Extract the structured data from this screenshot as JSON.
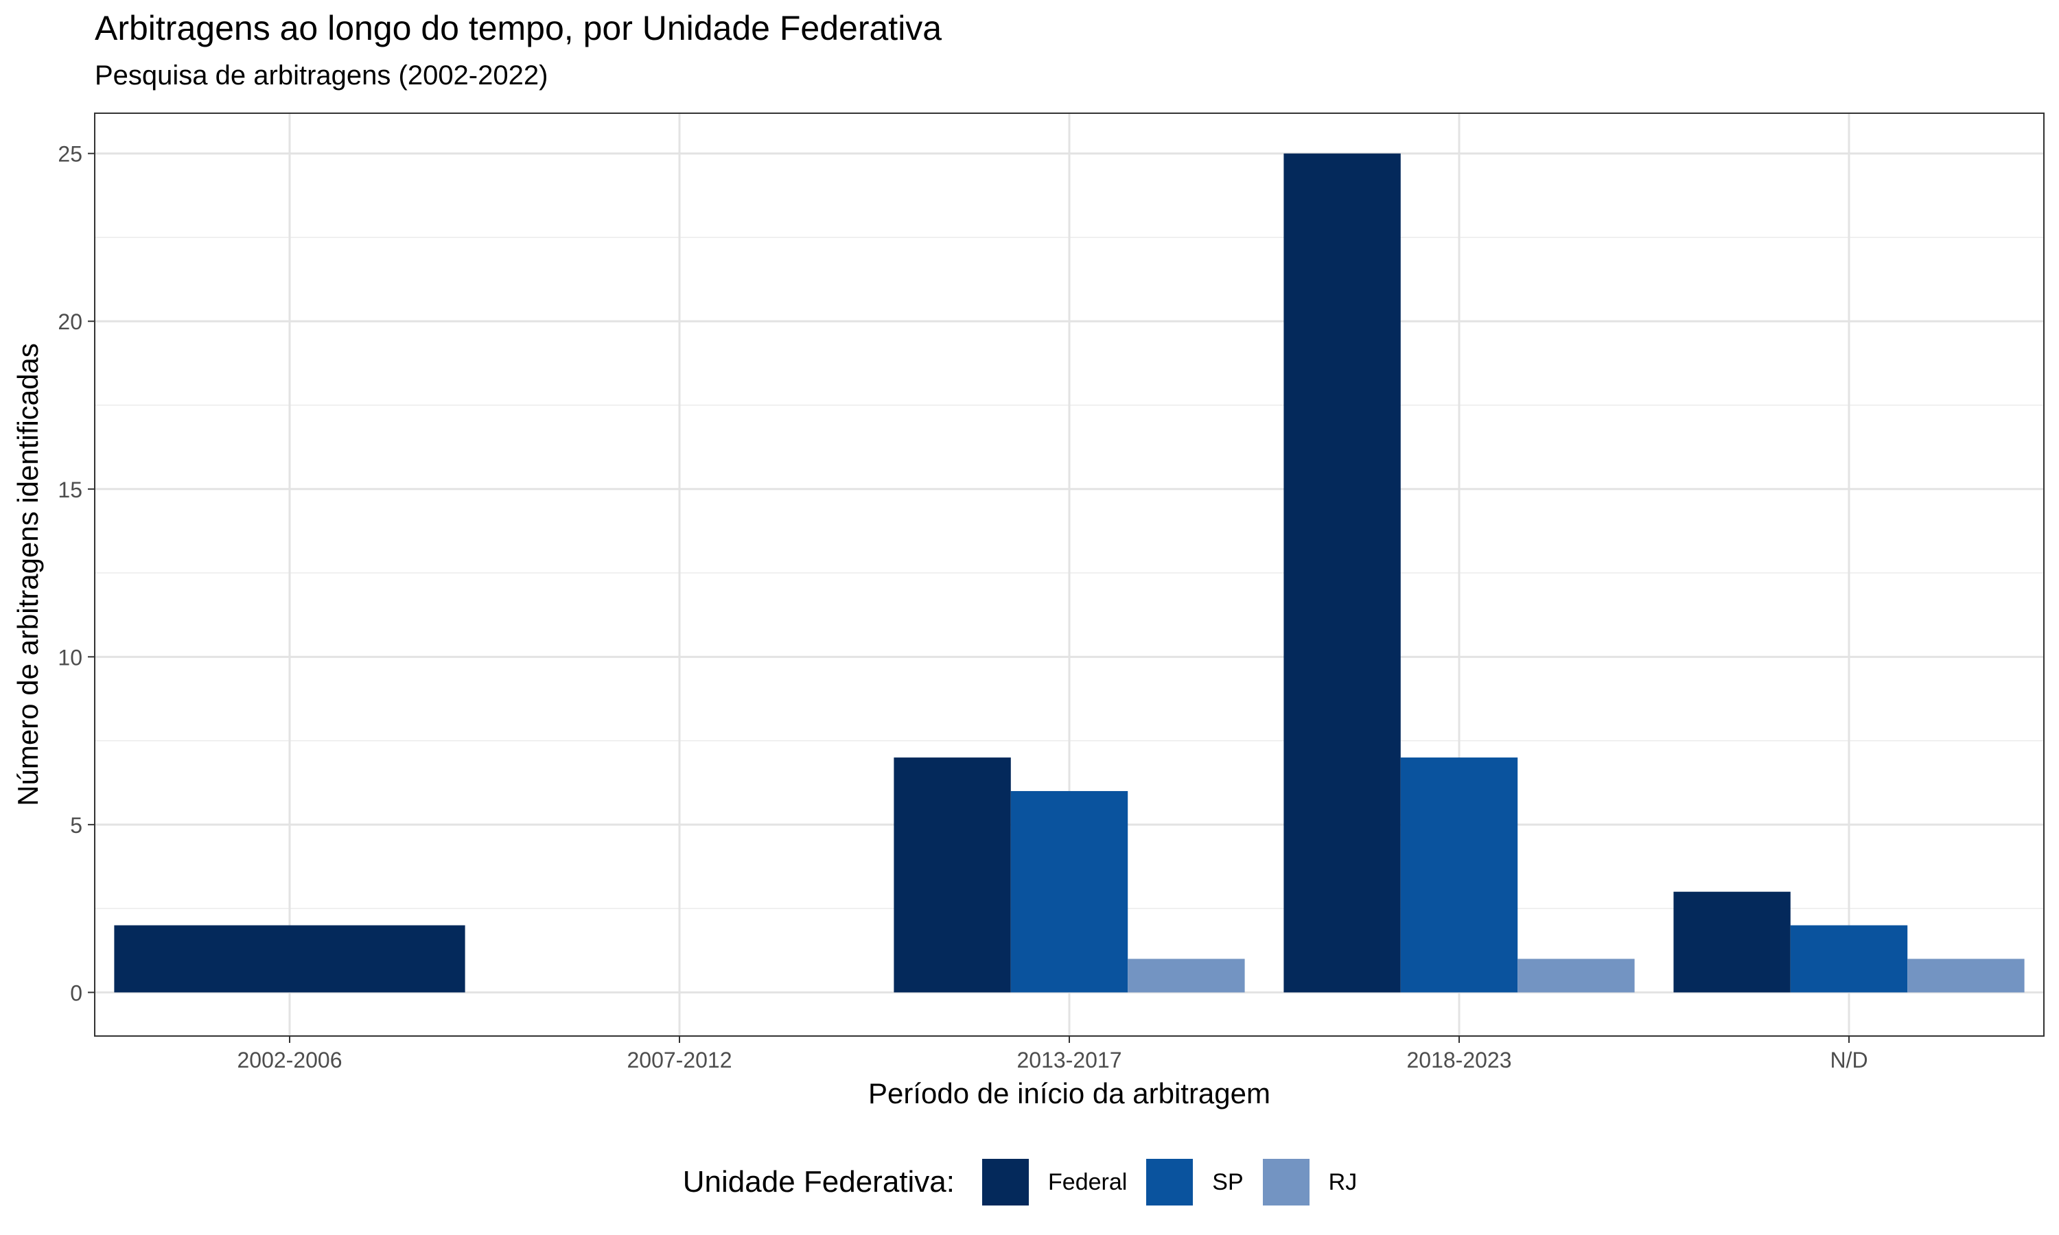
{
  "chart_data": {
    "type": "bar",
    "title": "Arbitragens ao longo do tempo, por Unidade Federativa",
    "subtitle": "Pesquisa de arbitragens (2002-2022)",
    "xlabel": "Período de início da arbitragem",
    "ylabel": "Número de arbitragens identificadas",
    "categories": [
      "2002-2006",
      "2007-2012",
      "2013-2017",
      "2018-2023",
      "N/D"
    ],
    "series": [
      {
        "name": "Federal",
        "color": "#04295B",
        "values": [
          2,
          null,
          7,
          25,
          3
        ]
      },
      {
        "name": "SP",
        "color": "#0A539E",
        "values": [
          null,
          null,
          6,
          7,
          2
        ]
      },
      {
        "name": "RJ",
        "color": "#7394C2",
        "values": [
          null,
          null,
          1,
          1,
          1
        ]
      }
    ],
    "ylim": [
      -1.3,
      26.2
    ],
    "yticks": [
      0,
      5,
      10,
      15,
      20,
      25
    ],
    "grid": true,
    "legend": {
      "title": "Unidade Federativa:",
      "position": "bottom"
    }
  }
}
